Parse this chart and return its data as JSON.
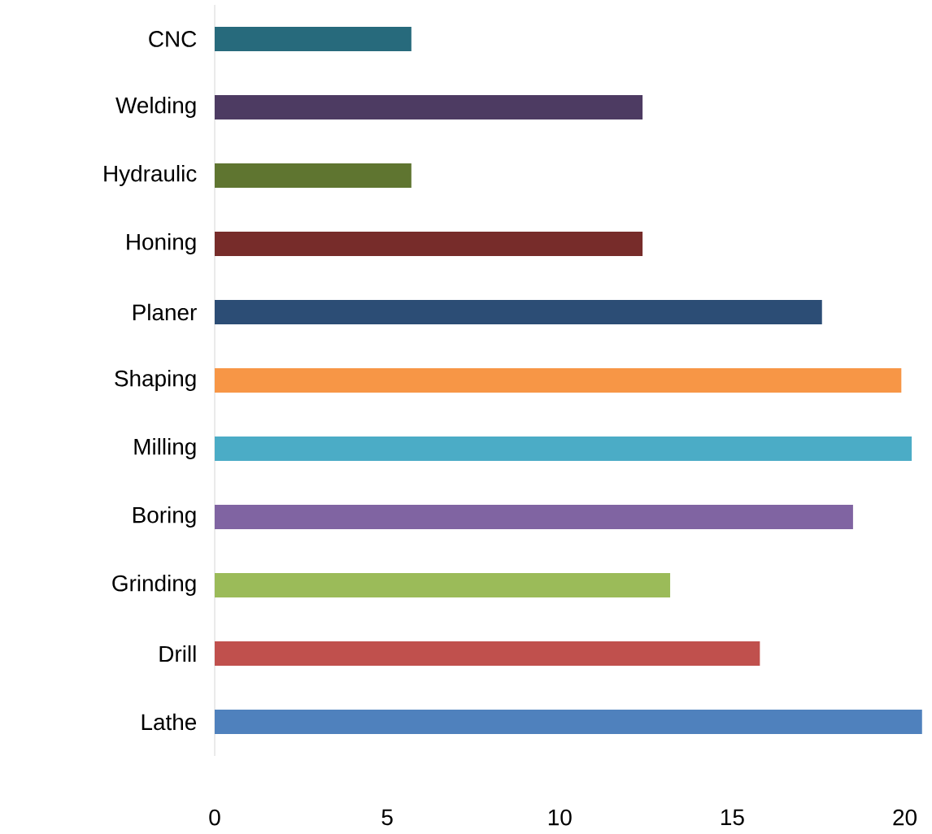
{
  "chart_data": {
    "type": "bar",
    "orientation": "horizontal",
    "categories": [
      "CNC",
      "Welding",
      "Hydraulic",
      "Honing",
      "Planer",
      "Shaping",
      "Milling",
      "Boring",
      "Grinding",
      "Drill",
      "Lathe"
    ],
    "values": [
      5.7,
      12.4,
      5.7,
      12.4,
      17.6,
      19.9,
      20.2,
      18.5,
      13.2,
      15.8,
      20.5
    ],
    "colors": [
      "#276a7c",
      "#4d3b62",
      "#5f7530",
      "#772c2a",
      "#2c4d75",
      "#f79646",
      "#4bacc6",
      "#8064a2",
      "#9bbb59",
      "#c0504d",
      "#4f81bd"
    ],
    "xlim": [
      0,
      20.6
    ],
    "xticks": [
      0,
      5,
      10,
      15,
      20
    ]
  }
}
